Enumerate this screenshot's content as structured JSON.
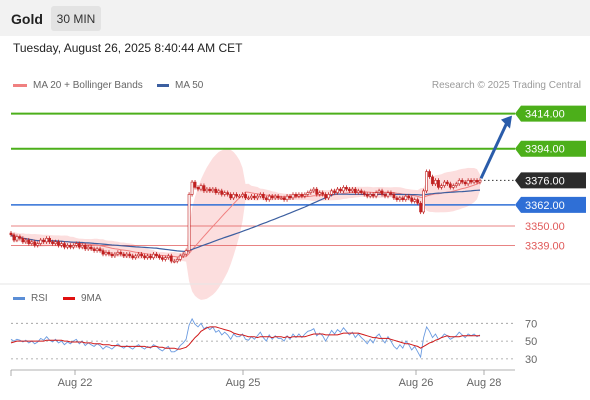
{
  "header": {
    "title": "Gold",
    "timeframe": "30 MIN"
  },
  "datetime": "Tuesday, August 26, 2025 8:40:44 AM CET",
  "legend": [
    {
      "label": "MA 20 + Bollinger Bands",
      "color": "#f08080"
    },
    {
      "label": "MA 50",
      "color": "#3c5fa0"
    }
  ],
  "rsi_legend": [
    {
      "label": "RSI",
      "color": "#5b8ed6"
    },
    {
      "label": "9MA",
      "color": "#e01010"
    }
  ],
  "credit": "Research © 2025 Trading Central",
  "colors": {
    "green": "#4caf1a",
    "blue": "#2f6fd6",
    "red": "#e05a5a",
    "candle": "#c02020",
    "bb_fill": "#fbd3d3",
    "ma20": "#f08080",
    "ma50": "#3c5fa0",
    "arrow": "#2a5caa",
    "rsi": "#6b9be0",
    "rsi_ma": "#d01818"
  },
  "chart_data": [
    {
      "type": "candlestick",
      "title": "Gold",
      "timeframe": "30 MIN",
      "x_ticks": [
        "Aug 22",
        "Aug 25",
        "Aug 26",
        "Aug 28"
      ],
      "ylim": [
        3317,
        3424
      ],
      "levels": [
        {
          "value": 3414.0,
          "label": "3414.00",
          "kind": "resistance"
        },
        {
          "value": 3394.0,
          "label": "3394.00",
          "kind": "resistance"
        },
        {
          "value": 3376.0,
          "label": "3376.00",
          "kind": "last"
        },
        {
          "value": 3362.0,
          "label": "3362.00",
          "kind": "pivot"
        },
        {
          "value": 3350.0,
          "label": "3350.00",
          "kind": "support"
        },
        {
          "value": 3339.0,
          "label": "3339.00",
          "kind": "support"
        }
      ],
      "series": [
        {
          "name": "MA 20 + Bollinger Bands"
        },
        {
          "name": "MA 50"
        }
      ],
      "closes": [
        3345,
        3342,
        3344,
        3343,
        3341,
        3342,
        3340,
        3341,
        3339,
        3340,
        3342,
        3341,
        3343,
        3341,
        3340,
        3341,
        3339,
        3340,
        3338,
        3339,
        3338,
        3339,
        3340,
        3338,
        3339,
        3337,
        3338,
        3337,
        3336,
        3337,
        3336,
        3334,
        3335,
        3334,
        3333,
        3334,
        3335,
        3334,
        3333,
        3334,
        3333,
        3332,
        3333,
        3334,
        3333,
        3332,
        3333,
        3332,
        3334,
        3333,
        3332,
        3331,
        3332,
        3333,
        3330,
        3330,
        3331,
        3333,
        3334,
        3336,
        3368,
        3375,
        3372,
        3371,
        3373,
        3370,
        3371,
        3370,
        3371,
        3369,
        3370,
        3368,
        3369,
        3368,
        3366,
        3368,
        3367,
        3367,
        3368,
        3366,
        3366,
        3367,
        3366,
        3367,
        3368,
        3366,
        3365,
        3367,
        3366,
        3367,
        3366,
        3366,
        3365,
        3367,
        3366,
        3368,
        3367,
        3368,
        3367,
        3368,
        3369,
        3370,
        3371,
        3368,
        3369,
        3368,
        3366,
        3368,
        3370,
        3369,
        3371,
        3370,
        3372,
        3371,
        3370,
        3371,
        3369,
        3370,
        3369,
        3368,
        3367,
        3368,
        3367,
        3369,
        3370,
        3368,
        3367,
        3369,
        3368,
        3366,
        3365,
        3366,
        3365,
        3367,
        3366,
        3364,
        3365,
        3363,
        3358,
        3370,
        3381,
        3378,
        3374,
        3376,
        3372,
        3373,
        3375,
        3374,
        3372,
        3373,
        3374,
        3376,
        3375,
        3374,
        3376,
        3375,
        3376,
        3375,
        3376
      ],
      "projection": {
        "from": 3376.0,
        "to": 3414.0
      }
    },
    {
      "type": "line",
      "title": "RSI",
      "yticks": [
        30,
        50,
        70
      ],
      "ylim": [
        22,
        76
      ],
      "series": [
        {
          "name": "RSI",
          "values": [
            52,
            50,
            52,
            51,
            49,
            51,
            48,
            50,
            47,
            49,
            53,
            51,
            55,
            51,
            49,
            52,
            48,
            50,
            46,
            49,
            47,
            50,
            52,
            47,
            50,
            45,
            48,
            46,
            44,
            47,
            45,
            41,
            44,
            43,
            41,
            44,
            47,
            44,
            42,
            45,
            43,
            41,
            44,
            46,
            43,
            41,
            44,
            42,
            46,
            44,
            41,
            39,
            42,
            44,
            38,
            38,
            40,
            45,
            48,
            52,
            68,
            75,
            69,
            66,
            70,
            64,
            66,
            63,
            66,
            60,
            62,
            57,
            60,
            57,
            52,
            58,
            55,
            55,
            58,
            52,
            51,
            55,
            52,
            56,
            60,
            54,
            50,
            57,
            52,
            56,
            53,
            53,
            50,
            56,
            52,
            58,
            54,
            58,
            54,
            58,
            61,
            62,
            64,
            56,
            59,
            56,
            50,
            56,
            62,
            58,
            63,
            60,
            65,
            61,
            57,
            60,
            54,
            58,
            54,
            51,
            47,
            52,
            48,
            55,
            58,
            52,
            48,
            55,
            50,
            44,
            41,
            46,
            42,
            50,
            46,
            40,
            44,
            38,
            32,
            54,
            66,
            61,
            54,
            58,
            52,
            54,
            58,
            56,
            52,
            54,
            56,
            60,
            57,
            54,
            58,
            56,
            58,
            55,
            57
          ]
        },
        {
          "name": "9MA",
          "values": [
            48,
            49,
            50,
            50,
            50,
            50,
            50,
            50,
            50,
            50,
            50,
            50,
            51,
            51,
            51,
            51,
            51,
            51,
            50,
            50,
            49,
            49,
            49,
            49,
            49,
            48,
            48,
            48,
            47,
            47,
            47,
            46,
            46,
            46,
            45,
            45,
            45,
            44,
            44,
            44,
            44,
            44,
            44,
            44,
            44,
            44,
            43,
            43,
            44,
            44,
            43,
            43,
            42,
            42,
            42,
            42,
            41,
            41,
            42,
            43,
            46,
            50,
            54,
            57,
            61,
            63,
            65,
            66,
            66,
            66,
            65,
            64,
            63,
            62,
            61,
            59,
            58,
            57,
            57,
            56,
            55,
            55,
            55,
            54,
            55,
            55,
            55,
            55,
            54,
            55,
            55,
            55,
            54,
            55,
            54,
            55,
            55,
            55,
            55,
            55,
            56,
            57,
            58,
            58,
            58,
            58,
            57,
            57,
            57,
            57,
            57,
            58,
            59,
            59,
            59,
            59,
            59,
            59,
            58,
            57,
            56,
            55,
            54,
            54,
            53,
            53,
            53,
            53,
            52,
            51,
            50,
            49,
            48,
            47,
            47,
            46,
            45,
            44,
            42,
            44,
            46,
            48,
            49,
            51,
            52,
            54,
            55,
            56,
            55,
            55,
            55,
            55,
            56,
            56,
            56,
            56,
            56,
            56,
            56
          ]
        }
      ]
    }
  ]
}
